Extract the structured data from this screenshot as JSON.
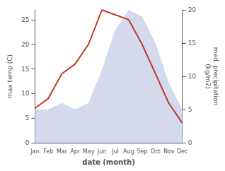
{
  "chart_data": {
    "type": "line",
    "categories": [
      "Jan",
      "Feb",
      "Mar",
      "Apr",
      "May",
      "Jun",
      "Jul",
      "Aug",
      "Sep",
      "Oct",
      "Nov",
      "Dec"
    ],
    "series": [
      {
        "type": "line",
        "color": "#c0392b",
        "values": [
          7,
          9,
          14,
          16,
          20,
          27,
          26,
          25,
          20,
          14,
          8,
          4
        ]
      },
      {
        "type": "area",
        "color": "#c5cce8",
        "axis": "y2",
        "values": [
          5,
          5,
          6,
          5,
          6,
          11,
          17,
          20,
          19,
          15,
          9,
          5
        ]
      }
    ],
    "x_label": "date (month)",
    "y_label": "max temp (C)",
    "y2_label": "med. precipitation\n(kg/m2)",
    "ylim": [
      0,
      27
    ],
    "yticks": [
      0,
      5,
      10,
      15,
      20,
      25
    ],
    "y2lim": [
      0,
      20
    ],
    "y2ticks": [
      0,
      5,
      10,
      15,
      20
    ],
    "grid": false
  }
}
